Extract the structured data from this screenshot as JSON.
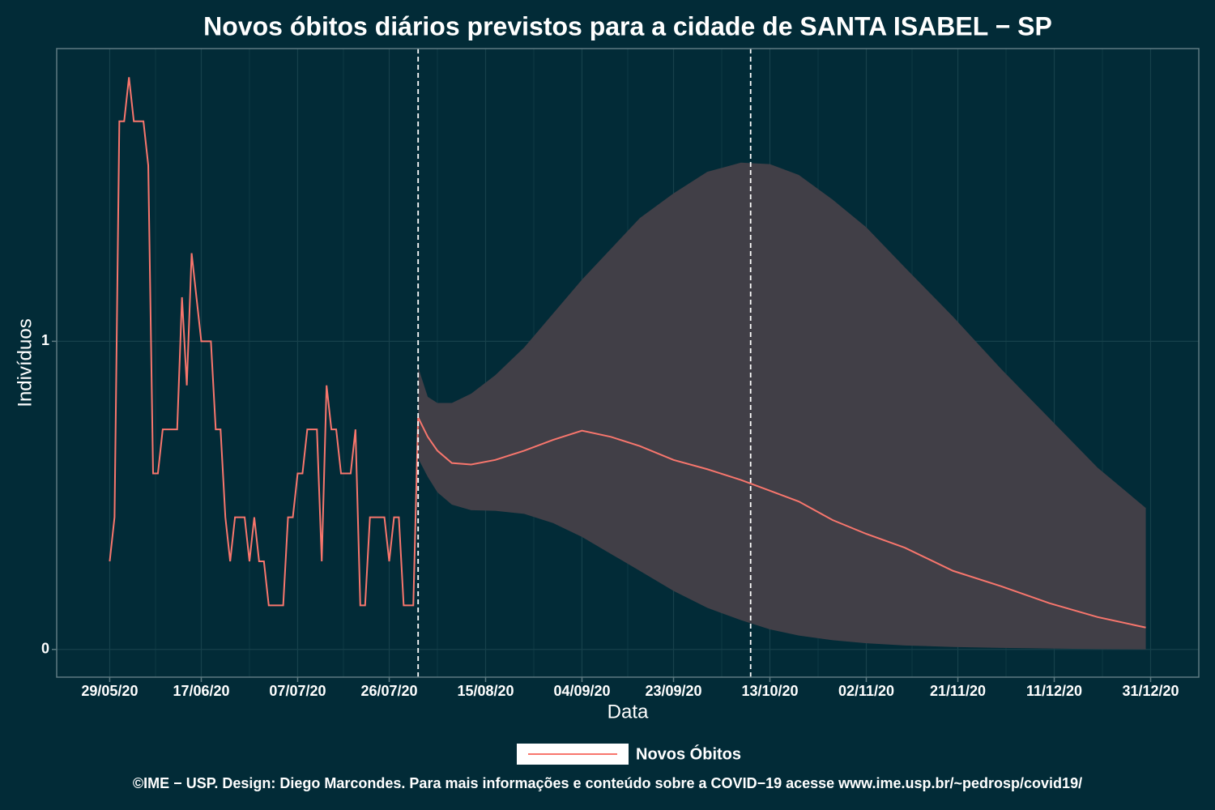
{
  "chart_data": {
    "type": "line",
    "title": "Novos óbitos diários previstos para a cidade de SANTA ISABEL − SP",
    "x_label": "Data",
    "y_label": "Indivíduos",
    "caption": "©IME − USP. Design: Diego Marcondes. Para mais informações e conteúdo sobre a COVID−19 acesse www.ime.usp.br/~pedrosp/covid19/",
    "xlim": [
      "18/05/20",
      "10/01/21"
    ],
    "xticks": [
      "29/05/20",
      "17/06/20",
      "07/07/20",
      "26/07/20",
      "15/08/20",
      "04/09/20",
      "23/09/20",
      "13/10/20",
      "02/11/20",
      "21/11/20",
      "11/12/20",
      "31/12/20"
    ],
    "ylim": [
      -0.09,
      1.95
    ],
    "yticks": [
      0,
      1
    ],
    "grid": true,
    "vlines": [
      "01/08/20",
      "09/10/20"
    ],
    "series": [
      {
        "name": "Novos Óbitos",
        "color": "#f8766d",
        "x": [
          "29/05/20",
          "30/05/20",
          "31/05/20",
          "01/06/20",
          "02/06/20",
          "03/06/20",
          "04/06/20",
          "05/06/20",
          "06/06/20",
          "07/06/20",
          "08/06/20",
          "09/06/20",
          "10/06/20",
          "11/06/20",
          "12/06/20",
          "13/06/20",
          "14/06/20",
          "15/06/20",
          "16/06/20",
          "17/06/20",
          "18/06/20",
          "19/06/20",
          "20/06/20",
          "21/06/20",
          "22/06/20",
          "23/06/20",
          "24/06/20",
          "25/06/20",
          "26/06/20",
          "27/06/20",
          "28/06/20",
          "29/06/20",
          "30/06/20",
          "01/07/20",
          "02/07/20",
          "03/07/20",
          "04/07/20",
          "05/07/20",
          "06/07/20",
          "07/07/20",
          "08/07/20",
          "09/07/20",
          "10/07/20",
          "11/07/20",
          "12/07/20",
          "13/07/20",
          "14/07/20",
          "15/07/20",
          "16/07/20",
          "17/07/20",
          "18/07/20",
          "19/07/20",
          "20/07/20",
          "21/07/20",
          "22/07/20",
          "23/07/20",
          "24/07/20",
          "25/07/20",
          "26/07/20",
          "27/07/20",
          "28/07/20",
          "29/07/20",
          "30/07/20",
          "31/07/20",
          "01/08/20",
          "03/08/20",
          "05/08/20",
          "08/08/20",
          "12/08/20",
          "17/08/20",
          "23/08/20",
          "29/08/20",
          "04/09/20",
          "10/09/20",
          "16/09/20",
          "23/09/20",
          "30/09/20",
          "07/10/20",
          "13/10/20",
          "19/10/20",
          "26/10/20",
          "02/11/20",
          "10/11/20",
          "20/11/20",
          "30/11/20",
          "10/12/20",
          "20/12/20",
          "30/12/20"
        ],
        "values": [
          0.286,
          0.429,
          1.714,
          1.714,
          1.857,
          1.714,
          1.714,
          1.714,
          1.571,
          0.571,
          0.571,
          0.714,
          0.714,
          0.714,
          0.714,
          1.143,
          0.857,
          1.286,
          1.143,
          1.0,
          1.0,
          1.0,
          0.714,
          0.714,
          0.429,
          0.286,
          0.429,
          0.429,
          0.429,
          0.286,
          0.429,
          0.286,
          0.286,
          0.143,
          0.143,
          0.143,
          0.143,
          0.429,
          0.429,
          0.571,
          0.571,
          0.714,
          0.714,
          0.714,
          0.286,
          0.857,
          0.714,
          0.714,
          0.571,
          0.571,
          0.571,
          0.714,
          0.143,
          0.143,
          0.429,
          0.429,
          0.429,
          0.429,
          0.286,
          0.429,
          0.429,
          0.143,
          0.143,
          0.143,
          0.753,
          0.69,
          0.645,
          0.605,
          0.6,
          0.615,
          0.645,
          0.68,
          0.71,
          0.69,
          0.66,
          0.615,
          0.585,
          0.55,
          0.515,
          0.48,
          0.42,
          0.375,
          0.33,
          0.255,
          0.205,
          0.15,
          0.105,
          0.071
        ]
      }
    ],
    "band": {
      "color": "#413f47",
      "x": [
        "01/08/20",
        "03/08/20",
        "05/08/20",
        "08/08/20",
        "12/08/20",
        "17/08/20",
        "23/08/20",
        "29/08/20",
        "04/09/20",
        "10/09/20",
        "16/09/20",
        "23/09/20",
        "30/09/20",
        "07/10/20",
        "13/10/20",
        "19/10/20",
        "26/10/20",
        "02/11/20",
        "10/11/20",
        "20/11/20",
        "30/11/20",
        "10/12/20",
        "20/12/20",
        "30/12/20"
      ],
      "lower": [
        0.62,
        0.56,
        0.51,
        0.47,
        0.452,
        0.45,
        0.44,
        0.41,
        0.365,
        0.31,
        0.255,
        0.19,
        0.135,
        0.095,
        0.065,
        0.045,
        0.03,
        0.02,
        0.013,
        0.008,
        0.005,
        0.003,
        0.001,
        0
      ],
      "upper": [
        0.916,
        0.82,
        0.8,
        0.8,
        0.83,
        0.89,
        0.98,
        1.09,
        1.2,
        1.3,
        1.4,
        1.48,
        1.55,
        1.58,
        1.575,
        1.54,
        1.46,
        1.37,
        1.24,
        1.08,
        0.91,
        0.75,
        0.59,
        0.459
      ]
    }
  }
}
